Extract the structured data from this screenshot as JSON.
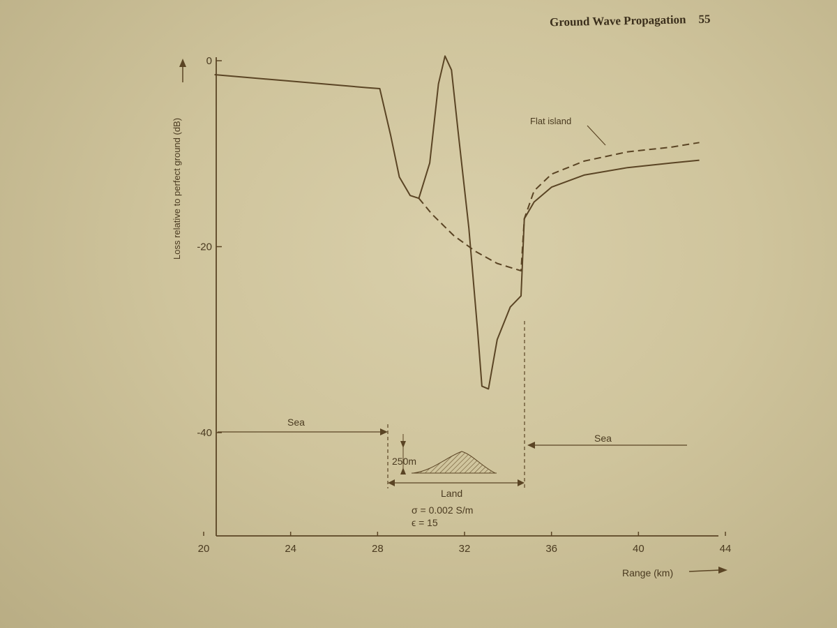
{
  "page_header": {
    "title": "Ground Wave Propagation",
    "page_number": "55"
  },
  "chart_data": {
    "type": "line",
    "xlabel": "Range (km)",
    "ylabel": "Loss relative to perfect ground (dB)",
    "xlim": [
      20,
      44
    ],
    "ylim": [
      -40,
      0
    ],
    "x_ticks": [
      "20",
      "24",
      "28",
      "32",
      "36",
      "40",
      "44"
    ],
    "y_ticks": [
      "0",
      "-20",
      "-40"
    ],
    "grid": false,
    "series": [
      {
        "name": "",
        "style": "solid",
        "points": [
          [
            20.5,
            -1.5
          ],
          [
            24,
            -2.2
          ],
          [
            27.5,
            -2.9
          ],
          [
            28.1,
            -3.0
          ],
          [
            28.6,
            -8
          ],
          [
            29.0,
            -12.5
          ],
          [
            29.5,
            -14.5
          ],
          [
            29.9,
            -14.8
          ],
          [
            30.4,
            -11
          ],
          [
            30.8,
            -2.5
          ],
          [
            31.1,
            0.5
          ],
          [
            31.4,
            -1
          ],
          [
            31.7,
            -7.5
          ],
          [
            32.2,
            -18
          ],
          [
            32.6,
            -29
          ],
          [
            32.8,
            -35
          ],
          [
            33.1,
            -35.3
          ],
          [
            33.5,
            -30
          ],
          [
            34.1,
            -26.5
          ],
          [
            34.6,
            -25.3
          ],
          [
            34.75,
            -17
          ],
          [
            35.2,
            -15.2
          ],
          [
            36,
            -13.6
          ],
          [
            37.5,
            -12.3
          ],
          [
            39.5,
            -11.5
          ],
          [
            41.5,
            -11
          ],
          [
            42.8,
            -10.7
          ]
        ]
      },
      {
        "name": "Flat island",
        "style": "dashed",
        "points": [
          [
            29.9,
            -14.8
          ],
          [
            30.5,
            -16.5
          ],
          [
            31.5,
            -18.8
          ],
          [
            32.5,
            -20.5
          ],
          [
            33.5,
            -21.8
          ],
          [
            34.6,
            -22.6
          ],
          [
            34.75,
            -17
          ],
          [
            35.2,
            -14
          ],
          [
            36,
            -12.2
          ],
          [
            37.5,
            -10.8
          ],
          [
            39.5,
            -9.8
          ],
          [
            41.5,
            -9.3
          ],
          [
            42.8,
            -8.8
          ]
        ]
      }
    ],
    "annotations": {
      "sea_left": "Sea",
      "sea_right": "Sea",
      "height": "250m",
      "land": "Land",
      "sigma": "σ = 0.002 S/m",
      "epsilon": "ϵ = 15"
    }
  }
}
